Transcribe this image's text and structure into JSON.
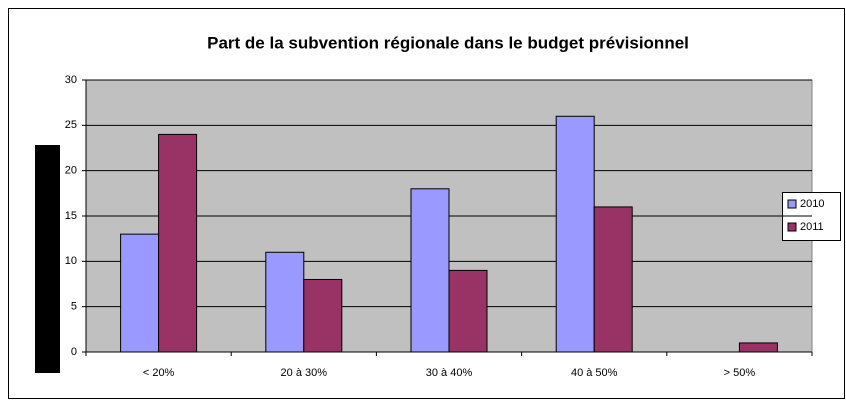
{
  "chart_data": {
    "type": "bar",
    "title": "Part de la subvention régionale dans le budget prévisionnel",
    "categories": [
      "< 20%",
      "20 à 30%",
      "30 à 40%",
      "40 à 50%",
      "> 50%"
    ],
    "series": [
      {
        "name": "2010",
        "color": "#9999ff",
        "values": [
          13,
          11,
          18,
          26,
          0
        ]
      },
      {
        "name": "2011",
        "color": "#993366",
        "values": [
          24,
          8,
          9,
          16,
          1
        ]
      }
    ],
    "ylim": [
      0,
      30
    ],
    "yticks": [
      0,
      5,
      10,
      15,
      20,
      25,
      30
    ],
    "grid": true,
    "legend": "right"
  }
}
